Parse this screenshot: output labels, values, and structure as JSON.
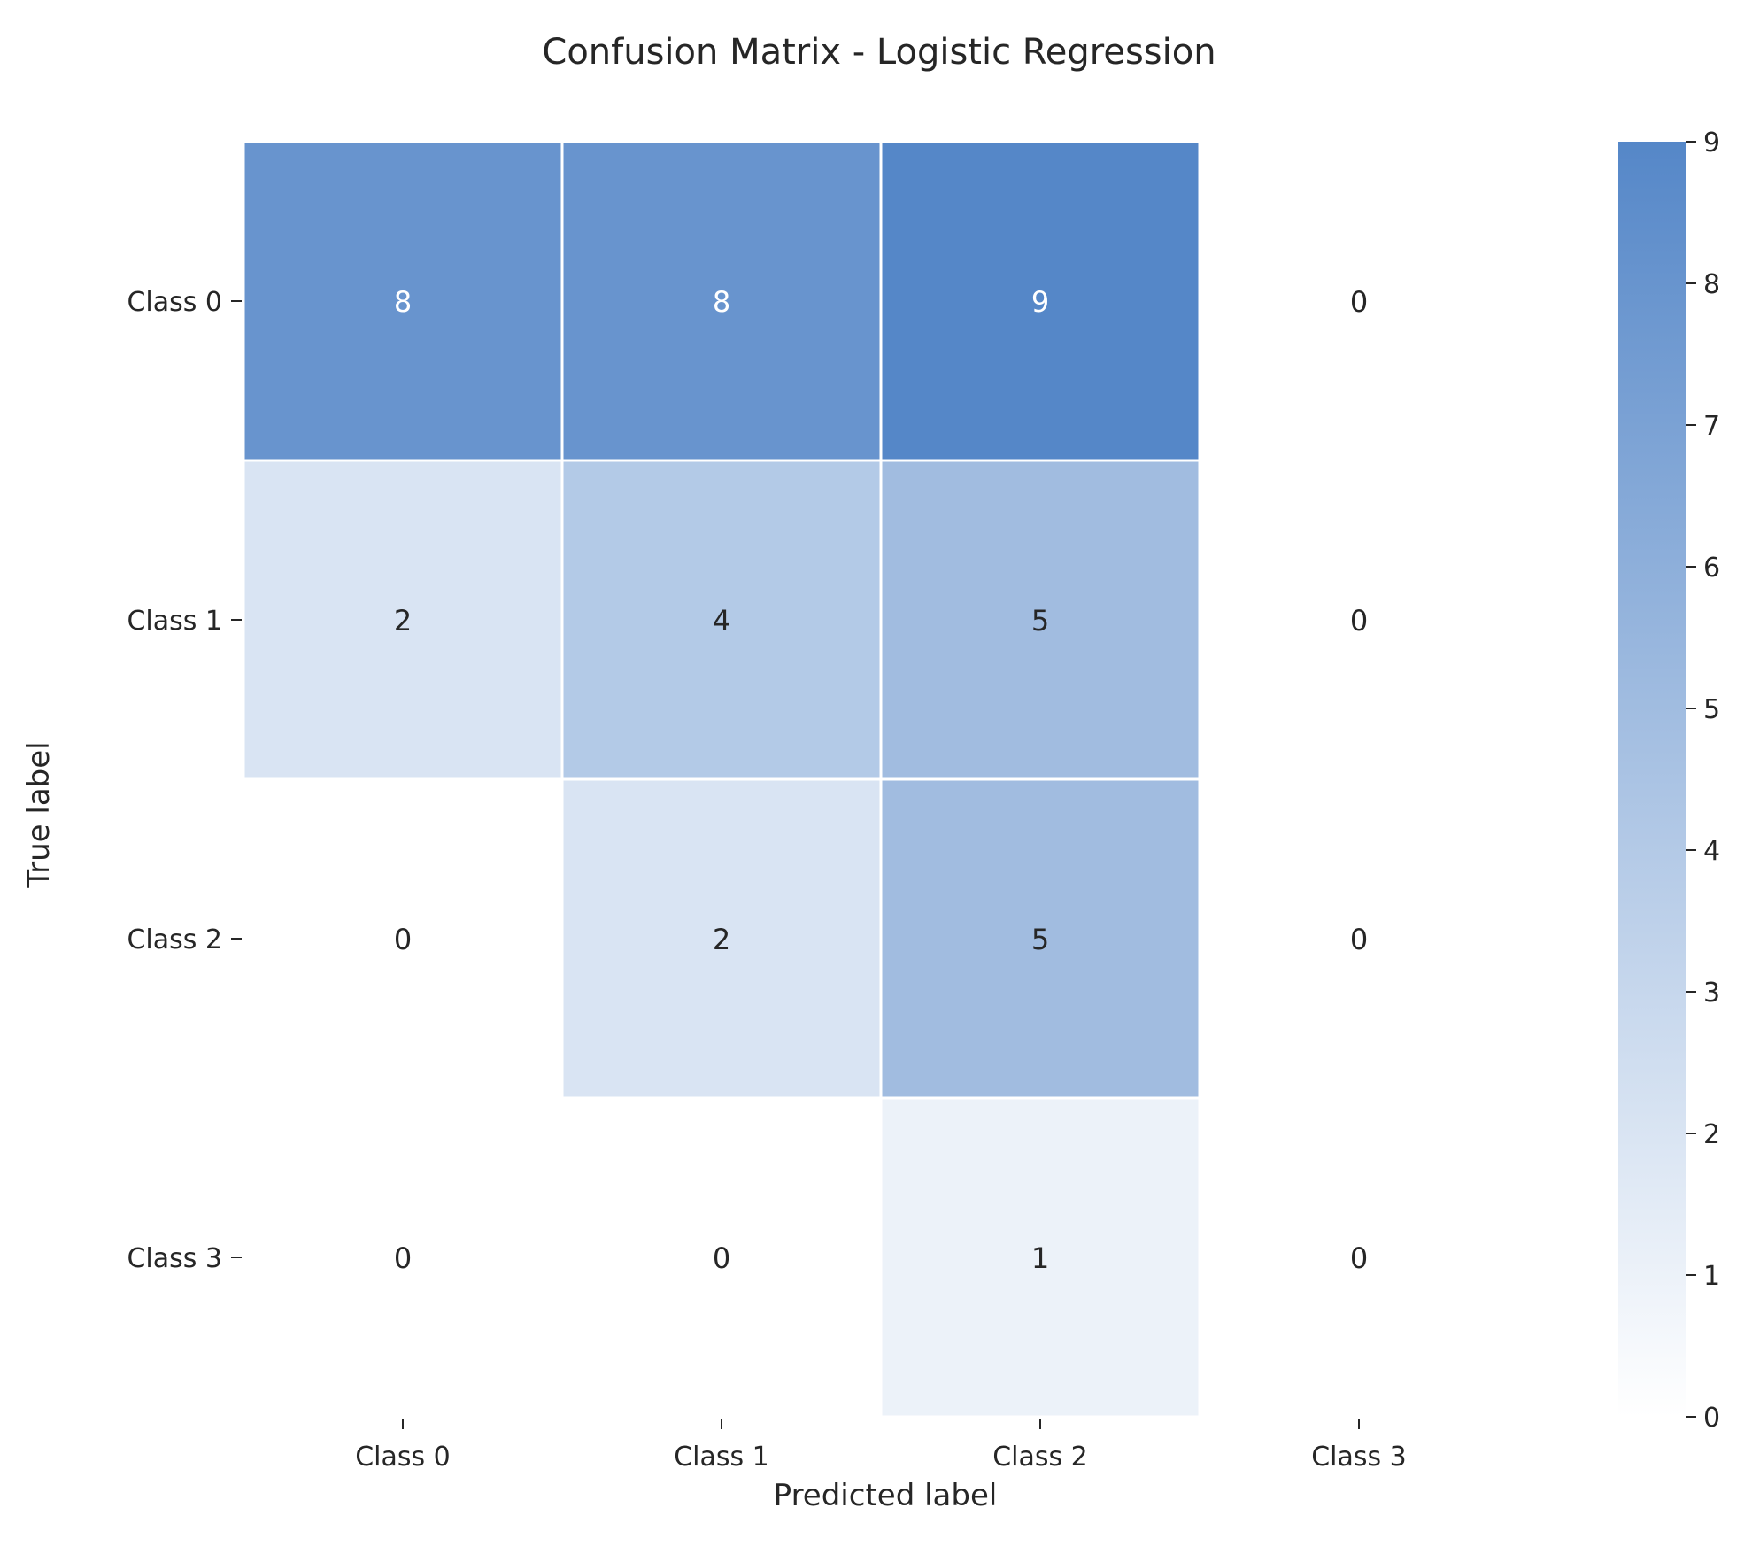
{
  "chart_data": {
    "type": "heatmap",
    "title": "Confusion Matrix - Logistic Regression",
    "xlabel": "Predicted label",
    "ylabel": "True label",
    "x_categories": [
      "Class 0",
      "Class 1",
      "Class 2",
      "Class 3"
    ],
    "y_categories": [
      "Class 0",
      "Class 1",
      "Class 2",
      "Class 3"
    ],
    "values": [
      [
        8,
        8,
        9,
        0
      ],
      [
        2,
        4,
        5,
        0
      ],
      [
        0,
        2,
        5,
        0
      ],
      [
        0,
        0,
        1,
        0
      ]
    ],
    "colorbar": {
      "min": 0,
      "max": 9,
      "ticks": [
        0,
        1,
        2,
        3,
        4,
        5,
        6,
        7,
        8,
        9
      ]
    },
    "colors": {
      "low": "#ffffff",
      "high": "#5587c8",
      "text_light": "#ffffff",
      "text_dark": "#262626",
      "cell_border": "#ffffff"
    },
    "grid": false
  }
}
